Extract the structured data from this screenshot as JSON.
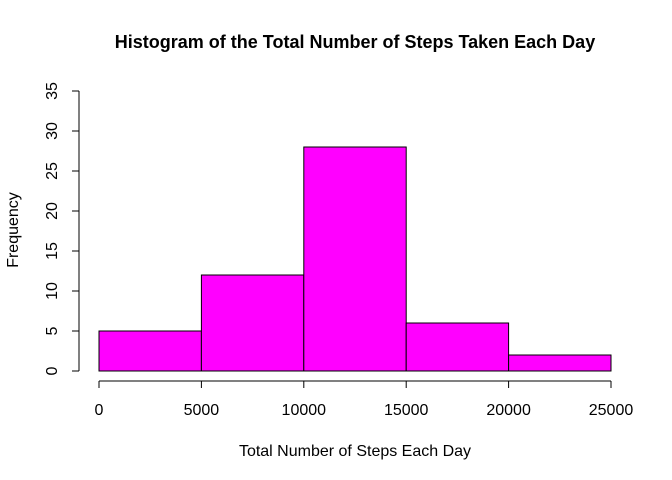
{
  "chart_data": {
    "type": "bar",
    "title": "Histogram of the Total Number of Steps Taken Each Day",
    "xlabel": "Total Number of Steps Each Day",
    "ylabel": "Frequency",
    "bins": [
      {
        "from": 0,
        "to": 5000,
        "count": 5
      },
      {
        "from": 5000,
        "to": 10000,
        "count": 12
      },
      {
        "from": 10000,
        "to": 15000,
        "count": 28
      },
      {
        "from": 15000,
        "to": 20000,
        "count": 6
      },
      {
        "from": 20000,
        "to": 25000,
        "count": 2
      }
    ],
    "xlim": [
      0,
      25000
    ],
    "ylim": [
      0,
      35
    ],
    "xticks": [
      0,
      5000,
      10000,
      15000,
      20000,
      25000
    ],
    "xtick_labels": [
      "0",
      "5000",
      "10000",
      "15000",
      "20000",
      "25000"
    ],
    "yticks": [
      0,
      5,
      10,
      15,
      20,
      25,
      30,
      35
    ],
    "ytick_labels": [
      "0",
      "5",
      "10",
      "15",
      "20",
      "25",
      "30",
      "35"
    ],
    "bar_color": "#FF00FF",
    "grid": false
  }
}
